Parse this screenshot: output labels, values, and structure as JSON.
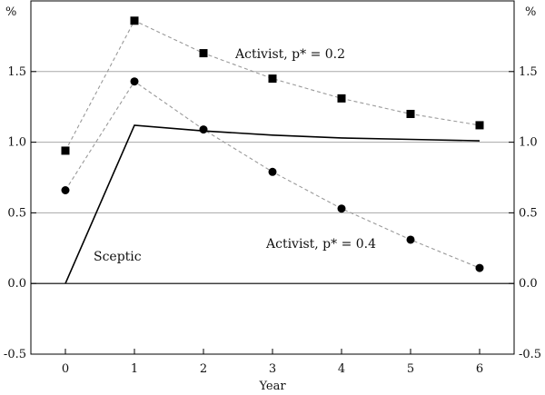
{
  "chart_data": {
    "type": "line",
    "xlabel": "Year",
    "ylabel_left": "%",
    "ylabel_right": "%",
    "x": [
      0,
      1,
      2,
      3,
      4,
      5,
      6
    ],
    "xlim": [
      -0.5,
      6.5
    ],
    "ylim": [
      -0.5,
      2.0
    ],
    "xticks": [
      "0",
      "1",
      "2",
      "3",
      "4",
      "5",
      "6"
    ],
    "yticks": [
      -0.5,
      0.0,
      0.5,
      1.0,
      1.5
    ],
    "ytick_labels": [
      "-0.5",
      "0.0",
      "0.5",
      "1.0",
      "1.5"
    ],
    "gridlines": [
      0.5,
      1.0,
      1.5
    ],
    "series": [
      {
        "name": "Activist, p* = 0.2",
        "style": "dashed-square",
        "values": [
          0.94,
          1.86,
          1.63,
          1.45,
          1.31,
          1.2,
          1.12
        ]
      },
      {
        "name": "Activist, p* = 0.4",
        "style": "dashed-circle",
        "values": [
          0.66,
          1.43,
          1.09,
          0.79,
          0.53,
          0.31,
          0.11
        ]
      },
      {
        "name": "Sceptic",
        "style": "solid",
        "values": [
          0.0,
          1.12,
          1.08,
          1.05,
          1.03,
          1.02,
          1.01
        ]
      }
    ],
    "annotations": [
      {
        "text": "Activist, p* = 0.2",
        "series": 0
      },
      {
        "text": "Activist, p* = 0.4",
        "series": 1
      },
      {
        "text": "Sceptic",
        "series": 2
      }
    ]
  }
}
